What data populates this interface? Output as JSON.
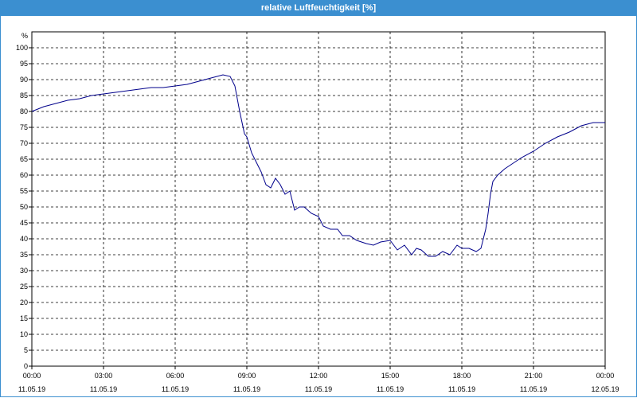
{
  "window": {
    "title": "relative Luftfeuchtigkeit [%]"
  },
  "chart_data": {
    "type": "line",
    "title": "relative Luftfeuchtigkeit [%]",
    "ylabel": "%",
    "ylim": [
      0,
      105
    ],
    "xlim": [
      0,
      24
    ],
    "yticks": [
      0,
      5,
      10,
      15,
      20,
      25,
      30,
      35,
      40,
      45,
      50,
      55,
      60,
      65,
      70,
      75,
      80,
      85,
      90,
      95,
      100
    ],
    "xticks": [
      {
        "x": 0,
        "time": "00:00",
        "date": "11.05.19"
      },
      {
        "x": 3,
        "time": "03:00",
        "date": "11.05.19"
      },
      {
        "x": 6,
        "time": "06:00",
        "date": "11.05.19"
      },
      {
        "x": 9,
        "time": "09:00",
        "date": "11.05.19"
      },
      {
        "x": 12,
        "time": "12:00",
        "date": "11.05.19"
      },
      {
        "x": 15,
        "time": "15:00",
        "date": "11.05.19"
      },
      {
        "x": 18,
        "time": "18:00",
        "date": "11.05.19"
      },
      {
        "x": 21,
        "time": "21:00",
        "date": "11.05.19"
      },
      {
        "x": 24,
        "time": "00:00",
        "date": "12.05.19"
      }
    ],
    "grid": true,
    "line_color": "#00008b",
    "series": [
      {
        "x": [
          0,
          0.5,
          1,
          1.5,
          2,
          2.5,
          3,
          3.5,
          4,
          4.5,
          5,
          5.5,
          6,
          6.5,
          7,
          7.5,
          8,
          8.3,
          8.5,
          8.7,
          8.9,
          9.0,
          9.2,
          9.4,
          9.6,
          9.8,
          10.0,
          10.2,
          10.4,
          10.6,
          10.8,
          11.0,
          11.2,
          11.4,
          11.7,
          12.0,
          12.2,
          12.5,
          12.8,
          13.0,
          13.3,
          13.6,
          14.0,
          14.3,
          14.6,
          15.0,
          15.3,
          15.6,
          15.9,
          16.1,
          16.3,
          16.6,
          16.9,
          17.2,
          17.5,
          17.8,
          18.0,
          18.3,
          18.6,
          18.8,
          19.0,
          19.1,
          19.2,
          19.3,
          19.5,
          19.8,
          20.0,
          20.5,
          21,
          21.5,
          22,
          22.5,
          23,
          23.5,
          24
        ],
        "y": [
          80,
          81.5,
          82.5,
          83.5,
          84,
          85,
          85.5,
          86,
          86.5,
          87,
          87.5,
          87.5,
          88,
          88.5,
          89.5,
          90.5,
          91.5,
          91,
          88,
          80,
          73,
          72,
          67,
          64,
          61,
          57,
          56,
          59,
          57,
          54,
          55,
          49,
          50,
          50,
          48,
          47,
          44,
          43,
          43,
          41,
          41,
          39.5,
          38.5,
          38,
          39,
          39.5,
          36.5,
          38,
          35,
          37,
          36.5,
          34.5,
          34.5,
          36,
          35,
          38,
          37,
          37,
          36,
          37,
          43,
          48,
          54,
          58,
          60,
          62,
          63,
          65.5,
          67.5,
          70,
          72,
          73.5,
          75.5,
          76.5,
          76.5
        ]
      }
    ]
  }
}
